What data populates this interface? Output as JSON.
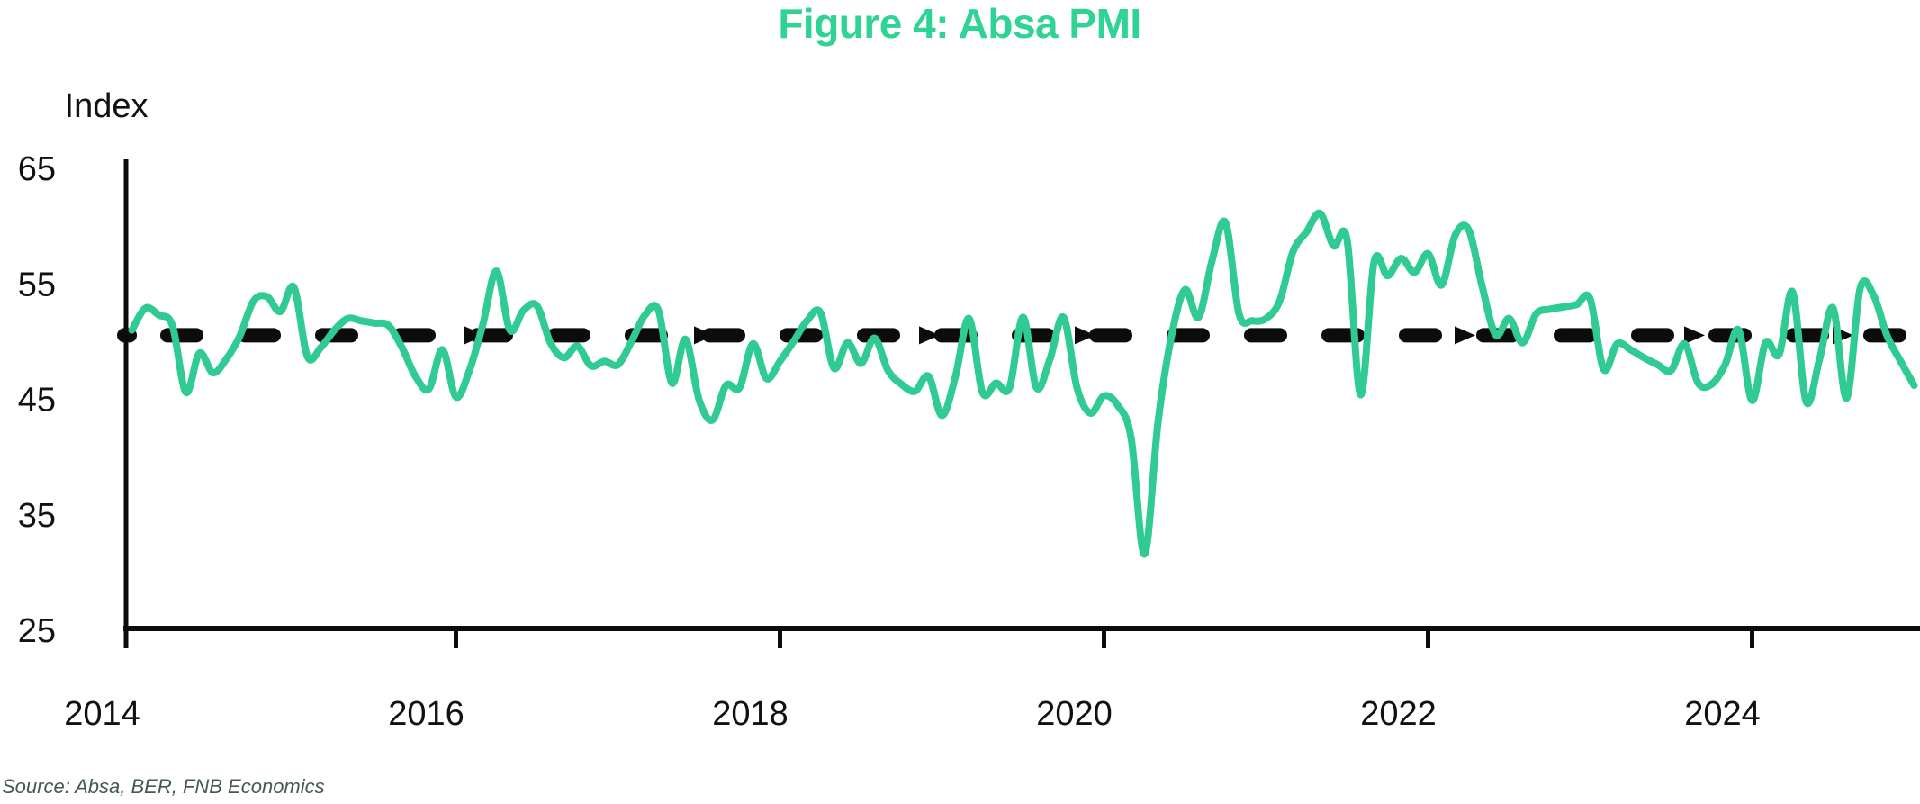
{
  "figure": {
    "title": "Figure 4: Absa PMI"
  },
  "source_note": "Source: Absa, BER, FNB Economics",
  "colors": {
    "title_green": "#2fd394",
    "line_green": "#2fcb92",
    "axis_black": "#0c0c0c",
    "source_gray": "#44585a",
    "background": "#ffffff"
  },
  "chart_data": {
    "type": "line",
    "title": "Figure 4: Absa PMI",
    "xlabel": "",
    "ylabel": "Index",
    "ylim": [
      25,
      65
    ],
    "yticks": [
      65,
      55,
      45,
      35,
      25
    ],
    "xticks": [
      2014,
      2016,
      2018,
      2020,
      2022,
      2024
    ],
    "grid": false,
    "legend": "none",
    "x_start": "2014-01",
    "x_end": "2025-01",
    "frequency": "monthly",
    "reference_line": {
      "value": 50,
      "style": "dashed-with-arrowheads",
      "color": "#0c0c0c"
    },
    "series": [
      {
        "name": "Absa PMI",
        "color": "#2fcb92",
        "values": [
          51.0,
          52.9,
          52.3,
          51.4,
          45.6,
          49.0,
          47.3,
          48.5,
          50.5,
          53.5,
          53.9,
          52.6,
          54.7,
          48.7,
          49.5,
          51.0,
          52.0,
          51.8,
          51.6,
          51.4,
          49.5,
          47.0,
          45.9,
          49.3,
          45.2,
          47.5,
          51.5,
          56.1,
          51.0,
          52.7,
          53.1,
          49.9,
          48.6,
          49.6,
          47.9,
          48.3,
          48.0,
          50.0,
          52.3,
          52.7,
          46.4,
          50.2,
          45.0,
          43.2,
          46.2,
          46.0,
          49.8,
          46.8,
          48.3,
          50.0,
          51.8,
          52.5,
          47.7,
          49.9,
          48.1,
          50.3,
          47.5,
          46.3,
          45.7,
          47.0,
          43.6,
          47.0,
          52.0,
          45.6,
          46.4,
          46.0,
          52.1,
          46.0,
          48.5,
          52.1,
          46.0,
          43.8,
          45.3,
          44.5,
          41.7,
          31.6,
          43.0,
          50.5,
          54.5,
          52.1,
          57.0,
          60.3,
          52.4,
          51.8,
          52.0,
          53.5,
          57.8,
          59.5,
          61.1,
          58.3,
          58.8,
          45.4,
          56.9,
          55.7,
          57.2,
          56.0,
          57.6,
          54.9,
          59.2,
          59.7,
          54.8,
          50.6,
          52.0,
          49.9,
          52.4,
          52.8,
          53.0,
          53.2,
          53.7,
          47.6,
          49.8,
          49.3,
          48.6,
          48.0,
          47.5,
          49.8,
          46.4,
          46.3,
          48.0,
          51.0,
          44.9,
          49.9,
          48.9,
          54.3,
          44.8,
          48.5,
          52.9,
          45.1,
          54.6,
          54.0,
          50.5,
          48.3,
          46.2
        ]
      }
    ]
  }
}
